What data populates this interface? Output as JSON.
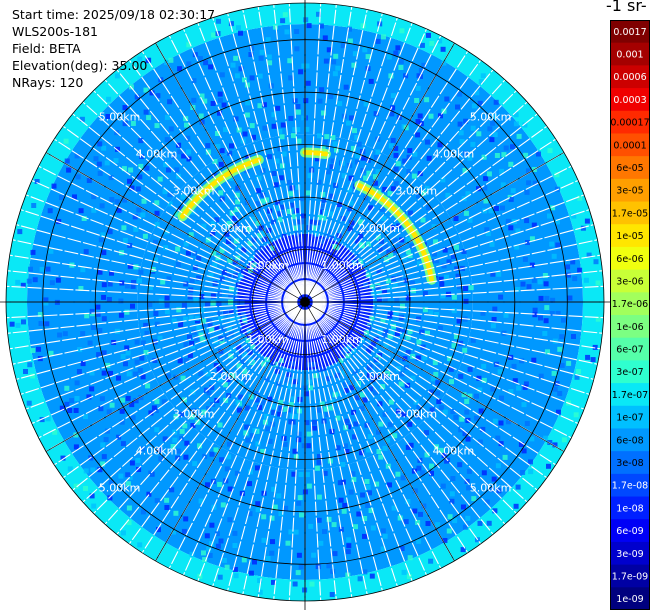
{
  "info": {
    "start_time": "Start time: 2025/09/18 02:30:17",
    "instrument": "WLS200s-181",
    "field": "Field: BETA",
    "elevation": "Elevation(deg): 35.00",
    "nrays": "NRays: 120"
  },
  "colorbar": {
    "title": "-1 sr-",
    "labels": [
      "0.0017",
      "0.001",
      "0.0006",
      "0.0003",
      "0.00017",
      "0.0001",
      "6e-05",
      "3e-05",
      "1.7e-05",
      "1e-05",
      "6e-06",
      "3e-06",
      "1.7e-06",
      "1e-06",
      "6e-07",
      "3e-07",
      "1.7e-07",
      "1e-07",
      "6e-08",
      "3e-08",
      "1.7e-08",
      "1e-08",
      "6e-09",
      "3e-09",
      "1.7e-09",
      "1e-09"
    ],
    "colors": [
      "#7f0000",
      "#a50000",
      "#cc0000",
      "#f00000",
      "#ff2a00",
      "#ff5000",
      "#ff7700",
      "#ff9f00",
      "#ffc200",
      "#ffe600",
      "#f0ff0f",
      "#c8ff37",
      "#a2ff5c",
      "#7cff82",
      "#55ffa9",
      "#2fffcf",
      "#0ae8f6",
      "#00c0ff",
      "#0098ff",
      "#0070ff",
      "#0048ff",
      "#0020ff",
      "#0000f6",
      "#0000cd",
      "#0000a4",
      "#00007f"
    ],
    "text_colors": [
      "#ffffff",
      "#ffffff",
      "#ffffff",
      "#ffffff",
      "#000000",
      "#000000",
      "#000000",
      "#000000",
      "#000000",
      "#000000",
      "#000000",
      "#000000",
      "#000000",
      "#000000",
      "#000000",
      "#000000",
      "#000000",
      "#000000",
      "#000000",
      "#000000",
      "#ffffff",
      "#ffffff",
      "#ffffff",
      "#ffffff",
      "#ffffff",
      "#ffffff"
    ]
  },
  "chart_data": {
    "type": "heatmap",
    "projection": "polar PPI",
    "nrays": 120,
    "range_rings_km": [
      1,
      2,
      3,
      4,
      5
    ],
    "ring_labels": [
      "1.00km",
      "2.00km",
      "3.00km",
      "4.00km",
      "5.00km"
    ],
    "max_range_km": 5.7,
    "colorscale": "jet, log-scaled, 1e-09 to 0.0017",
    "regions": [
      {
        "range_km": [
          0.0,
          1.3
        ],
        "value": "1e-08"
      },
      {
        "range_km": [
          1.3,
          3.2
        ],
        "value": "6e-08"
      },
      {
        "range_km": [
          3.2,
          5.3
        ],
        "value": "6e-08"
      },
      {
        "range_km": [
          5.3,
          5.7
        ],
        "value": "1.7e-07"
      }
    ],
    "features": [
      {
        "range_km": 2.45,
        "azimuth_deg": [
          25,
          80
        ],
        "value": "1e-05"
      },
      {
        "range_km": 2.85,
        "azimuth_deg": [
          -55,
          -18
        ],
        "value": "1e-05"
      },
      {
        "range_km": 2.85,
        "azimuth_deg": [
          0,
          8
        ],
        "value": "1e-05"
      }
    ]
  }
}
